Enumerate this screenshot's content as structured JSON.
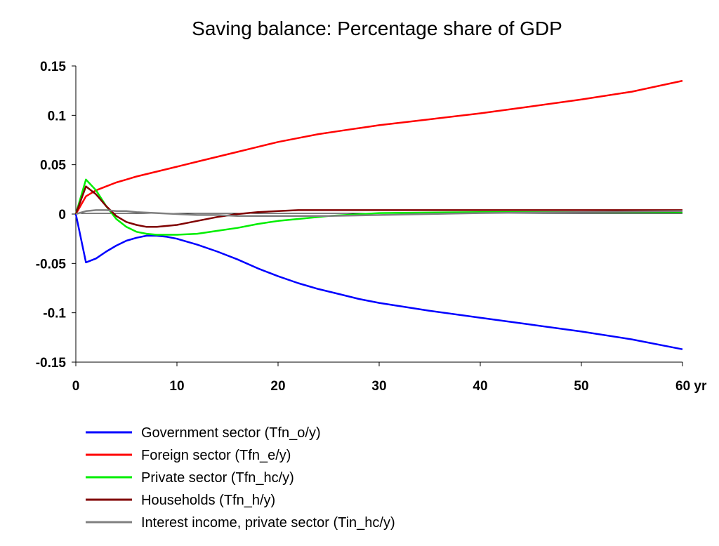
{
  "chart_data": {
    "type": "line",
    "title": "Saving balance: Percentage share of GDP",
    "xlabel": "",
    "ylabel": "",
    "x_unit": "yr",
    "xlim": [
      0,
      60
    ],
    "ylim": [
      -0.15,
      0.15
    ],
    "x_ticks": [
      0,
      10,
      20,
      30,
      40,
      50,
      60
    ],
    "x_tick_labels": [
      "0",
      "10",
      "20",
      "30",
      "40",
      "50",
      "60 yr"
    ],
    "y_ticks": [
      0.15,
      0.1,
      0.05,
      0,
      -0.05,
      -0.1,
      -0.15
    ],
    "y_tick_labels": [
      "0.15",
      "0.1",
      "0.05",
      "0",
      "-0.05",
      "-0.1",
      "-0.15"
    ],
    "grid": false,
    "legend_position": "bottom",
    "series": [
      {
        "name": "Government sector (Tfn_o/y)",
        "color": "#0000ff",
        "x": [
          0,
          1,
          2,
          3,
          4,
          5,
          6,
          7,
          8,
          9,
          10,
          12,
          14,
          16,
          18,
          20,
          22,
          24,
          26,
          28,
          30,
          35,
          40,
          45,
          50,
          55,
          60
        ],
        "y": [
          0,
          -0.049,
          -0.045,
          -0.038,
          -0.032,
          -0.027,
          -0.024,
          -0.022,
          -0.022,
          -0.023,
          -0.025,
          -0.031,
          -0.038,
          -0.046,
          -0.055,
          -0.063,
          -0.07,
          -0.076,
          -0.081,
          -0.086,
          -0.09,
          -0.098,
          -0.105,
          -0.112,
          -0.119,
          -0.127,
          -0.137
        ]
      },
      {
        "name": "Foreign sector (Tfn_e/y)",
        "color": "#ff0000",
        "x": [
          0,
          1,
          2,
          3,
          4,
          5,
          6,
          8,
          10,
          12,
          14,
          16,
          18,
          20,
          22,
          24,
          26,
          28,
          30,
          35,
          40,
          45,
          50,
          55,
          60
        ],
        "y": [
          0,
          0.018,
          0.024,
          0.028,
          0.032,
          0.035,
          0.038,
          0.043,
          0.048,
          0.053,
          0.058,
          0.063,
          0.068,
          0.073,
          0.077,
          0.081,
          0.084,
          0.087,
          0.09,
          0.096,
          0.102,
          0.109,
          0.116,
          0.124,
          0.135
        ]
      },
      {
        "name": "Private sector (Tfn_hc/y)",
        "color": "#00ee00",
        "x": [
          0,
          1,
          2,
          3,
          4,
          5,
          6,
          7,
          8,
          10,
          12,
          14,
          16,
          18,
          20,
          22,
          25,
          30,
          40,
          50,
          60
        ],
        "y": [
          0,
          0.035,
          0.024,
          0.008,
          -0.005,
          -0.013,
          -0.018,
          -0.02,
          -0.021,
          -0.021,
          -0.02,
          -0.017,
          -0.014,
          -0.01,
          -0.007,
          -0.005,
          -0.002,
          0.001,
          0.002,
          0.002,
          0.002
        ]
      },
      {
        "name": "Households (Tfn_h/y)",
        "color": "#800000",
        "x": [
          0,
          1,
          2,
          3,
          4,
          5,
          6,
          7,
          8,
          10,
          12,
          14,
          16,
          18,
          20,
          22,
          25,
          30,
          40,
          50,
          60
        ],
        "y": [
          0,
          0.028,
          0.02,
          0.008,
          -0.002,
          -0.008,
          -0.011,
          -0.013,
          -0.013,
          -0.011,
          -0.007,
          -0.003,
          0,
          0.002,
          0.003,
          0.004,
          0.004,
          0.004,
          0.004,
          0.004,
          0.004
        ]
      },
      {
        "name": "Interest income, private sector (Tin_hc/y)",
        "color": "#808080",
        "x": [
          0,
          1,
          2,
          3,
          4,
          5,
          6,
          8,
          10,
          12,
          14,
          16,
          18,
          20,
          25,
          30,
          40,
          50,
          60
        ],
        "y": [
          0,
          0.003,
          0.004,
          0.004,
          0.003,
          0.003,
          0.002,
          0.001,
          0,
          -0.001,
          -0.001,
          -0.002,
          -0.002,
          -0.002,
          -0.002,
          -0.001,
          0.001,
          0.002,
          0.003
        ]
      }
    ]
  }
}
